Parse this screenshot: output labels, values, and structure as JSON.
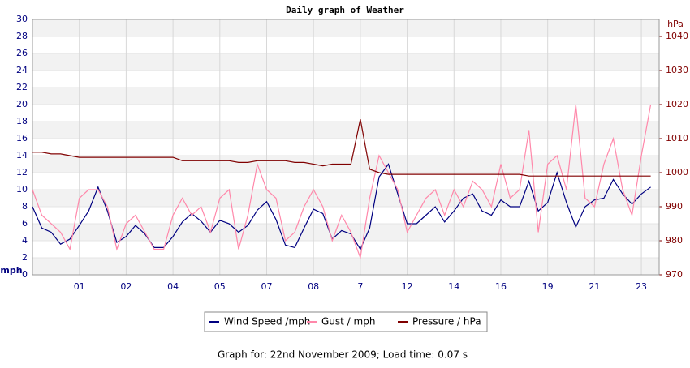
{
  "chart_data": {
    "type": "line",
    "title": "Daily graph of Weather",
    "y_label": "mph",
    "y2_label": "hPa",
    "footer": "Graph for: 22nd November 2009; Load time: 0.07 s",
    "x": [
      0,
      0.2,
      0.4,
      0.6,
      0.8,
      1,
      1.2,
      1.4,
      1.6,
      1.8,
      2,
      2.2,
      2.4,
      2.6,
      2.8,
      3,
      3.2,
      3.4,
      3.6,
      3.8,
      4,
      4.2,
      4.4,
      4.6,
      4.8,
      5,
      5.2,
      5.4,
      5.6,
      5.8,
      6,
      6.2,
      6.4,
      6.6,
      6.8,
      7,
      7.2,
      7.4,
      7.6,
      7.8,
      8,
      8.2,
      8.4,
      8.6,
      8.8,
      9,
      9.2,
      9.4,
      9.6,
      9.8,
      10,
      10.2,
      10.4,
      10.6,
      10.8,
      11,
      11.2,
      11.4,
      11.6,
      11.8,
      12,
      12.2,
      12.4,
      12.6,
      12.8,
      13,
      13.2
    ],
    "xlim": [
      0,
      13.38
    ],
    "xticks": [
      {
        "value": 1,
        "label": "01"
      },
      {
        "value": 2,
        "label": "02"
      },
      {
        "value": 3,
        "label": "04"
      },
      {
        "value": 4,
        "label": "05"
      },
      {
        "value": 5,
        "label": "07"
      },
      {
        "value": 6,
        "label": "08"
      },
      7,
      {
        "value": 8,
        "label": "12"
      },
      {
        "value": 9,
        "label": "14"
      },
      {
        "value": 10,
        "label": "16"
      },
      {
        "value": 11,
        "label": "19"
      },
      {
        "value": 12,
        "label": "21"
      },
      {
        "value": 13,
        "label": "23"
      }
    ],
    "ylim": [
      0,
      30
    ],
    "yticks": [
      0,
      2,
      4,
      6,
      8,
      10,
      12,
      14,
      16,
      18,
      20,
      22,
      24,
      26,
      28,
      30
    ],
    "y2lim": [
      970,
      1045
    ],
    "y2ticks": [
      970,
      980,
      990,
      1000,
      1010,
      1020,
      1030,
      1040
    ],
    "grid": true,
    "series": [
      {
        "name": "Wind Speed /mph",
        "color": "#000080",
        "values": [
          8,
          5.5,
          5,
          3.6,
          4.2,
          5.8,
          7.5,
          10.3,
          7.5,
          3.8,
          4.5,
          5.8,
          4.8,
          3.2,
          3.2,
          4.5,
          6.2,
          7.2,
          6.3,
          5,
          6.4,
          6,
          5,
          5.8,
          7.6,
          8.6,
          6.5,
          3.5,
          3.2,
          5.5,
          7.7,
          7.2,
          4.2,
          5.2,
          4.8,
          3,
          5.5,
          11.5,
          13,
          9.5,
          6,
          6,
          7,
          8,
          6.2,
          7.5,
          9,
          9.5,
          7.5,
          7,
          8.8,
          8,
          8,
          11,
          7.5,
          8.5,
          12,
          8.5,
          5.6,
          8,
          8.8,
          9,
          11.2,
          9.5,
          8.3,
          9.5,
          10.3
        ]
      },
      {
        "name": "Gust / mph",
        "color": "#ff88aa",
        "values": [
          10,
          7,
          6,
          5,
          3,
          9,
          10,
          10,
          8,
          3,
          6,
          7,
          5,
          3,
          3,
          7,
          9,
          7,
          8,
          5,
          9,
          10,
          3,
          7,
          13,
          10,
          9,
          4,
          5,
          8,
          10,
          8,
          4,
          7,
          5,
          2,
          9,
          14,
          12,
          10,
          5,
          7,
          9,
          10,
          7,
          10,
          8,
          11,
          10,
          8,
          13,
          9,
          10,
          17,
          5,
          13,
          14,
          10,
          20,
          9,
          8,
          13,
          16,
          10,
          7,
          14,
          20
        ]
      },
      {
        "name": "Pressure / hPa",
        "color": "#800000",
        "axis": "y2",
        "values": [
          1006,
          1006,
          1005.5,
          1005.5,
          1005,
          1004.5,
          1004.5,
          1004.5,
          1004.5,
          1004.5,
          1004.5,
          1004.5,
          1004.5,
          1004.5,
          1004.5,
          1004.5,
          1003.5,
          1003.5,
          1003.5,
          1003.5,
          1003.5,
          1003.5,
          1003,
          1003,
          1003.5,
          1003.5,
          1003.5,
          1003.5,
          1003,
          1003,
          1002.5,
          1002,
          1002.5,
          1002.5,
          1002.5,
          1015.7,
          1001,
          1000,
          999.5,
          999.5,
          999.5,
          999.5,
          999.5,
          999.5,
          999.5,
          999.5,
          999.5,
          999.5,
          999.5,
          999.5,
          999.5,
          999.5,
          999.5,
          999,
          999,
          999,
          999,
          999,
          999,
          999,
          999,
          999,
          999,
          999,
          999,
          999,
          999
        ]
      }
    ]
  }
}
